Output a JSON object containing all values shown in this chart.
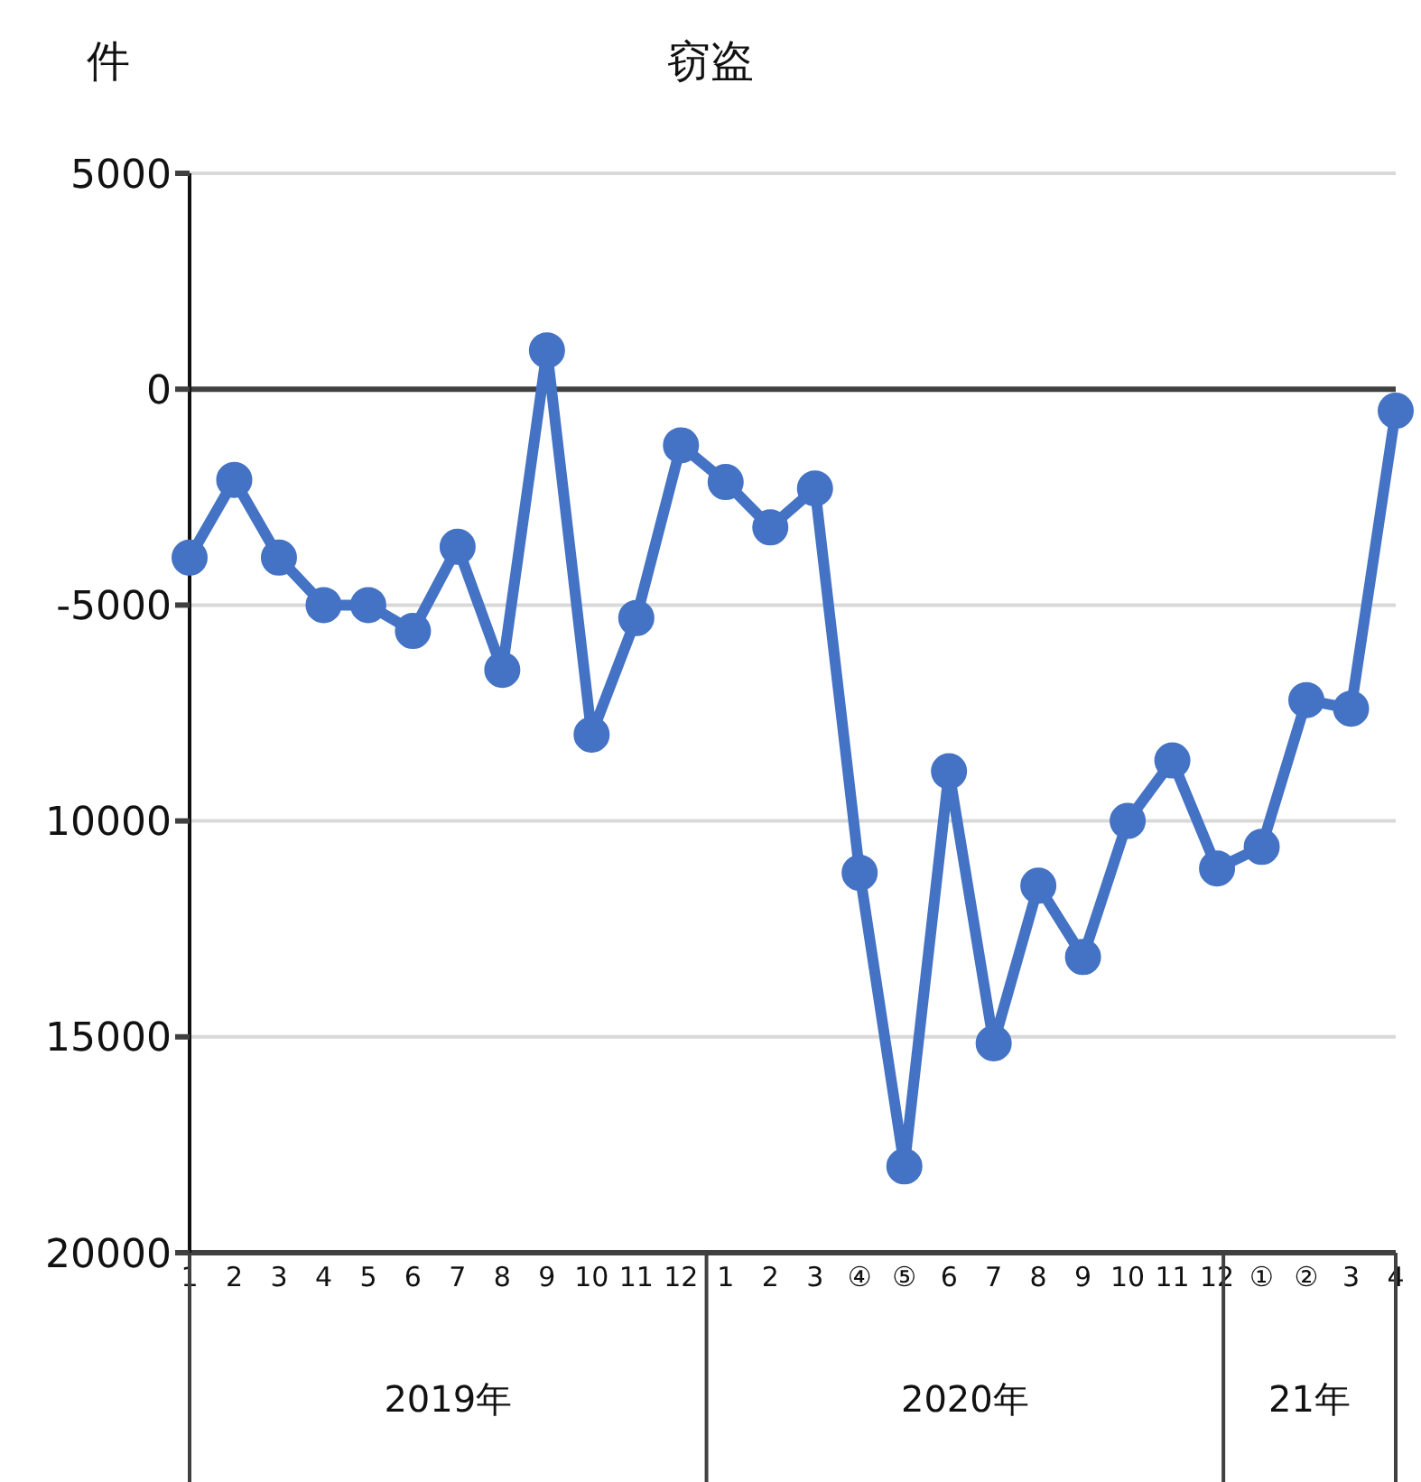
{
  "chart_data": {
    "type": "line",
    "title": "窃盗",
    "ylabel": "件",
    "categories": [
      "1",
      "2",
      "3",
      "4",
      "5",
      "6",
      "7",
      "8",
      "9",
      "10",
      "11",
      "12",
      "1",
      "2",
      "3",
      "④",
      "⑤",
      "6",
      "7",
      "8",
      "9",
      "10",
      "11",
      "12",
      "①",
      "②",
      "3",
      "4"
    ],
    "series": [
      {
        "color": "#4472c4",
        "values": [
          -3900,
          -2100,
          -3900,
          -5000,
          -5000,
          -5600,
          -3650,
          -6500,
          900,
          -8000,
          -5300,
          -1300,
          -2150,
          -3200,
          -2300,
          -11200,
          -18000,
          -8850,
          -15150,
          -11500,
          -13150,
          -10000,
          -8600,
          -11100,
          -10600,
          -7200,
          -7400,
          -500
        ]
      }
    ],
    "ylim": [
      -20000,
      5000
    ],
    "yticks": [
      {
        "value": -20000,
        "label": "20000"
      },
      {
        "value": -15000,
        "label": "15000"
      },
      {
        "value": -10000,
        "label": "10000"
      },
      -5000,
      0,
      5000
    ],
    "grid": "y",
    "marker": "circle",
    "line_style": "solid",
    "ref_lines": [
      {
        "axis": "y",
        "value": 0,
        "color": "#404040"
      }
    ],
    "annotations": [
      "2019年",
      "2020年",
      "21年"
    ]
  }
}
